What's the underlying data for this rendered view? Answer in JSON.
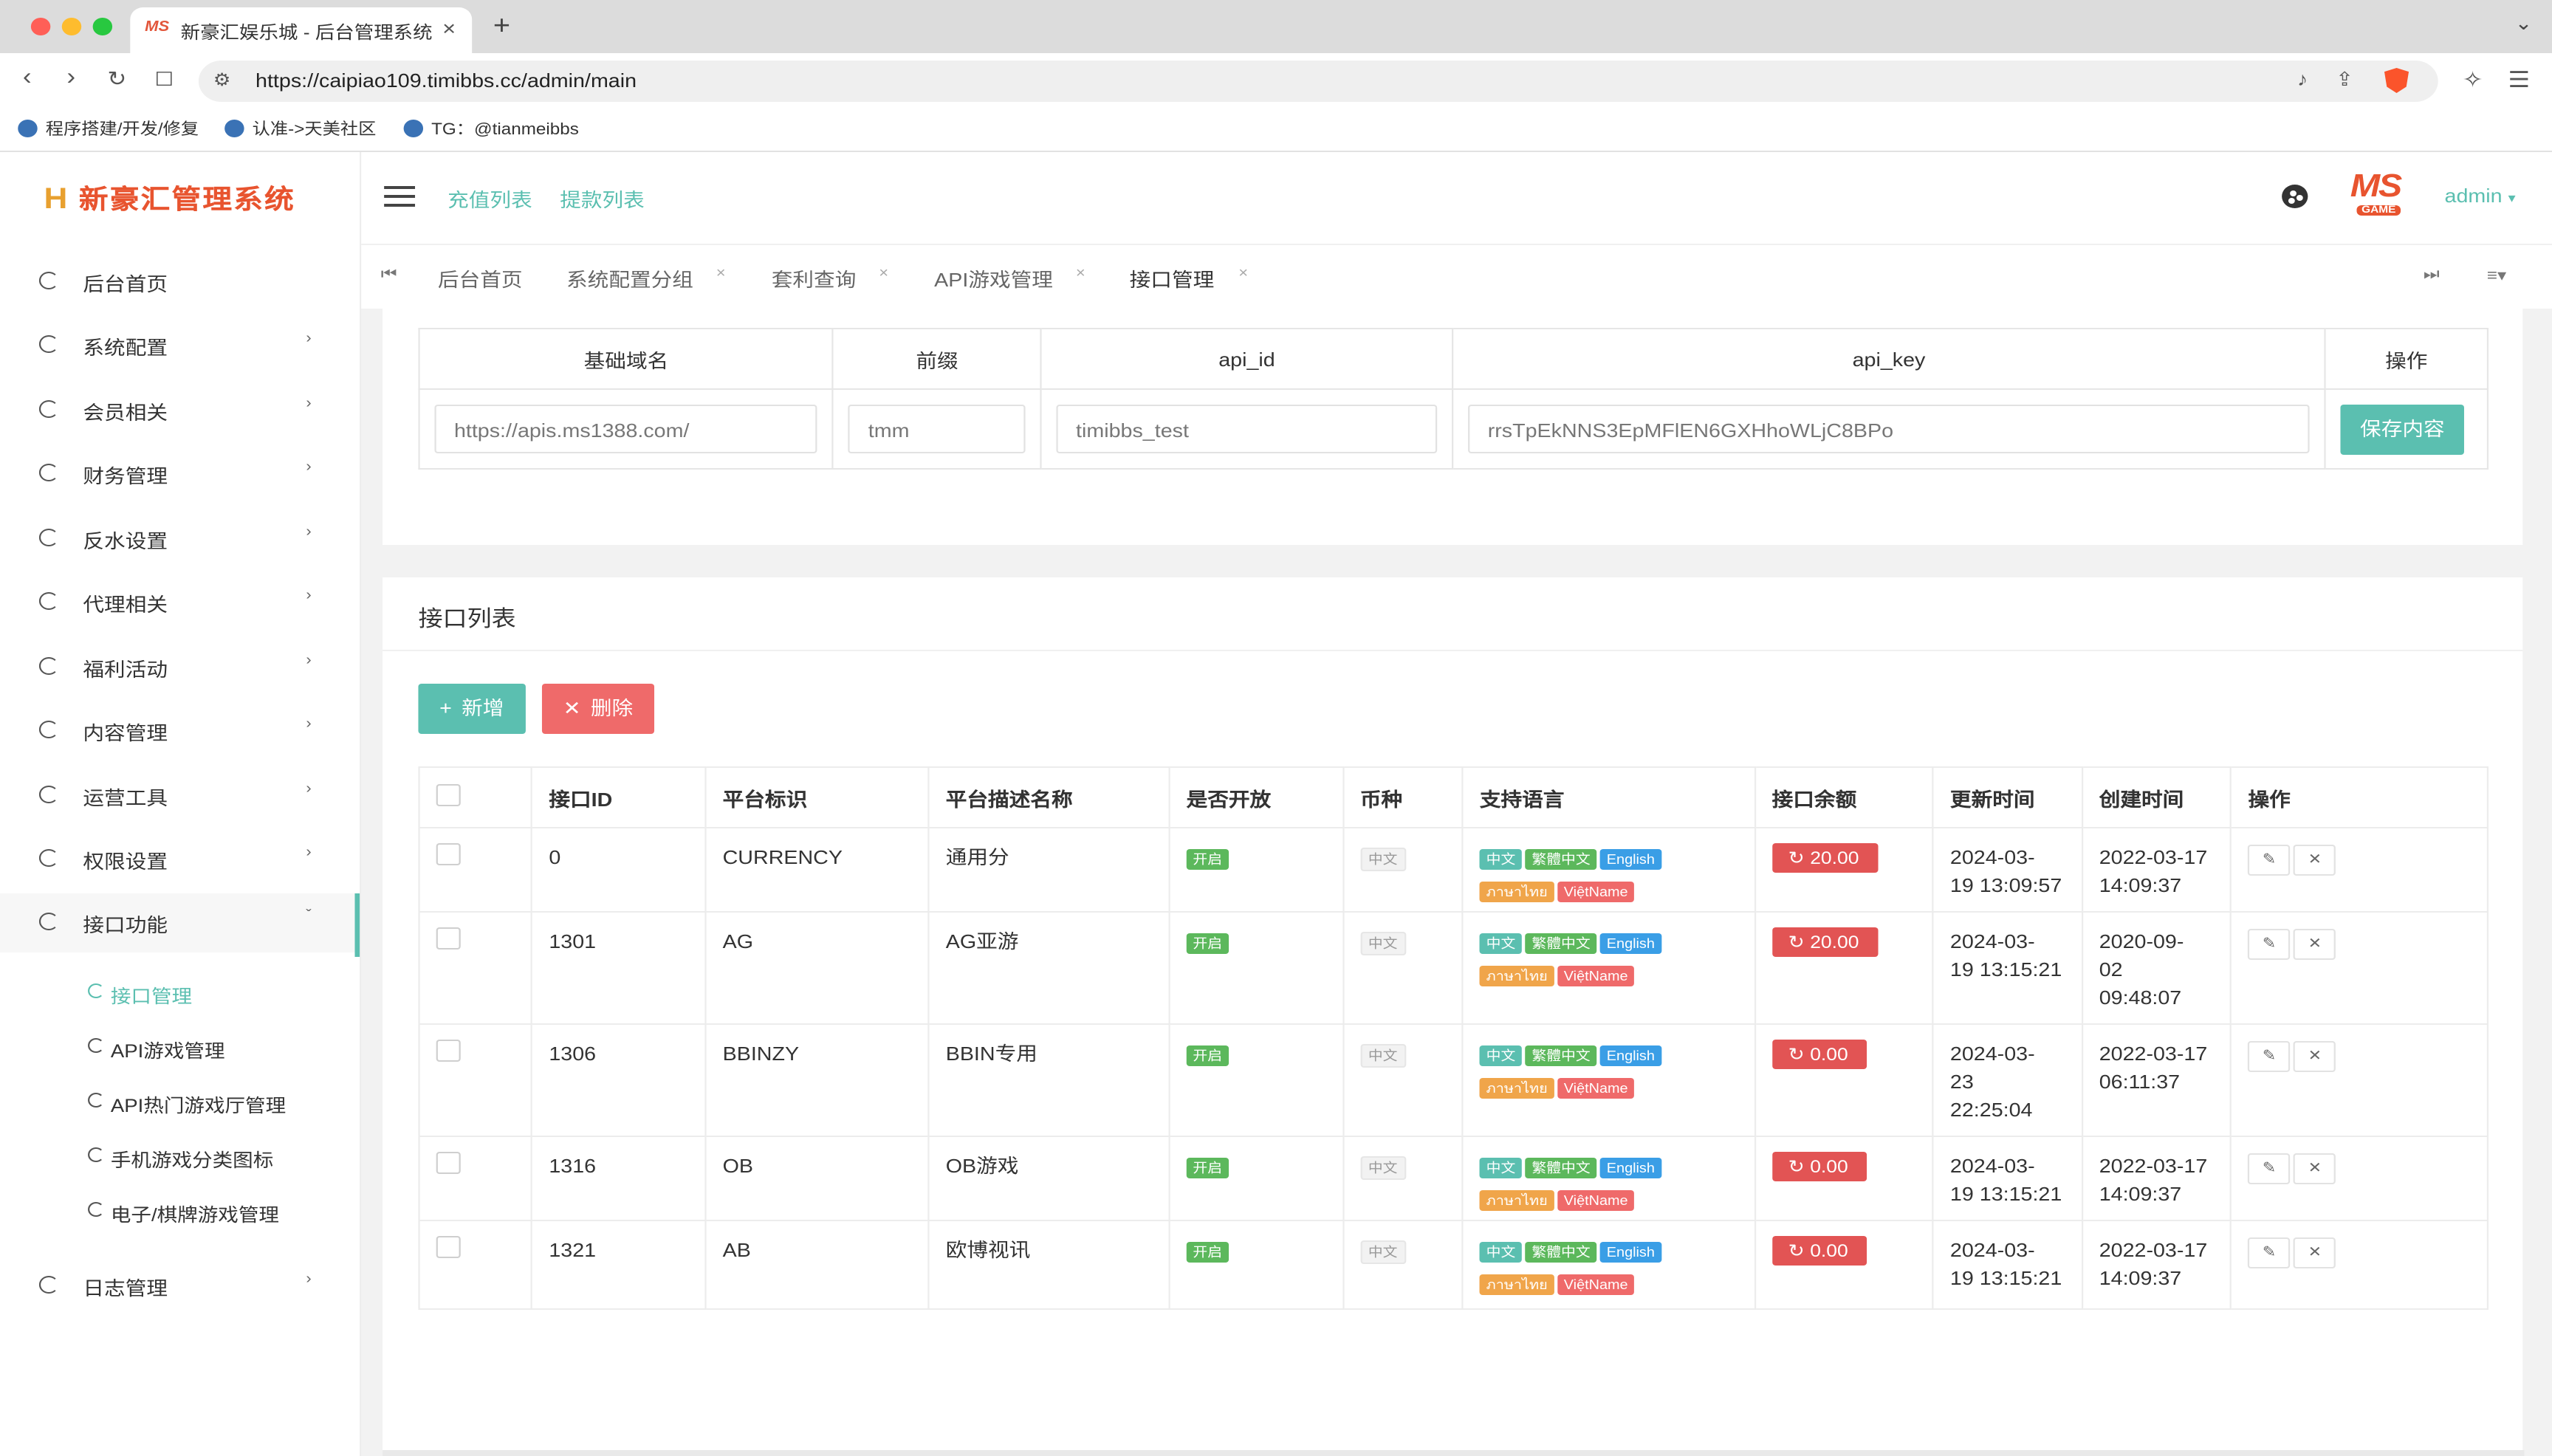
{
  "browser": {
    "tab_title": "新豪汇娱乐城 - 后台管理系统",
    "favicon_text": "MS",
    "new_tab_symbol": "+",
    "url": "https://caipiao109.timibbs.cc/admin/main",
    "bookmarks": [
      "程序搭建/开发/修复",
      "认准->天美社区",
      "TG：@tianmeibbs"
    ]
  },
  "app": {
    "logo_text": "新豪汇管理系统",
    "logo_mark": "H",
    "header_links": [
      "充值列表",
      "提款列表"
    ],
    "user": "admin",
    "ms_logo": "MS",
    "ms_logo_sub": "GAME"
  },
  "sidebar": {
    "items": [
      {
        "label": "后台首页",
        "caret": false
      },
      {
        "label": "系统配置",
        "caret": true
      },
      {
        "label": "会员相关",
        "caret": true
      },
      {
        "label": "财务管理",
        "caret": true
      },
      {
        "label": "反水设置",
        "caret": true
      },
      {
        "label": "代理相关",
        "caret": true
      },
      {
        "label": "福利活动",
        "caret": true
      },
      {
        "label": "内容管理",
        "caret": true
      },
      {
        "label": "运营工具",
        "caret": true
      },
      {
        "label": "权限设置",
        "caret": true
      },
      {
        "label": "接口功能",
        "caret": true,
        "expanded": true
      }
    ],
    "sub_items": [
      "接口管理",
      "API游戏管理",
      "API热门游戏厅管理",
      "手机游戏分类图标",
      "电子/棋牌游戏管理"
    ],
    "active_sub": "接口管理",
    "last_item": "日志管理"
  },
  "page_tabs": [
    {
      "label": "后台首页",
      "closable": false
    },
    {
      "label": "系统配置分组",
      "closable": true
    },
    {
      "label": "套利查询",
      "closable": true
    },
    {
      "label": "API游戏管理",
      "closable": true
    },
    {
      "label": "接口管理",
      "closable": true,
      "active": true
    }
  ],
  "config": {
    "headers": [
      "基础域名",
      "前缀",
      "api_id",
      "api_key",
      "操作"
    ],
    "base_domain": "https://apis.ms1388.com/",
    "prefix": "tmm",
    "api_id": "timibbs_test",
    "api_key": "rrsTpEkNNS3EpMFlEN6GXHhoWLjC8BPo",
    "save_label": "保存内容"
  },
  "list": {
    "title": "接口列表",
    "add_label": "新增",
    "delete_label": "删除",
    "headers": [
      "接口ID",
      "平台标识",
      "平台描述名称",
      "是否开放",
      "币种",
      "支持语言",
      "接口余额",
      "更新时间",
      "创建时间",
      "操作"
    ],
    "languages": [
      "中文",
      "繁體中文",
      "English",
      "ภาษาไทย",
      "ViệtName"
    ],
    "rows": [
      {
        "id": "0",
        "code": "CURRENCY",
        "name": "通用分",
        "open": "开启",
        "currency": "中文",
        "balance": "20.00",
        "updated": [
          "2024-03-",
          "19 13:09:57"
        ],
        "created": [
          "2022-03-17",
          "14:09:37"
        ]
      },
      {
        "id": "1301",
        "code": "AG",
        "name": "AG亚游",
        "open": "开启",
        "currency": "中文",
        "balance": "20.00",
        "updated": [
          "2024-03-",
          "19 13:15:21"
        ],
        "created": [
          "2020-09-",
          "02",
          "09:48:07"
        ]
      },
      {
        "id": "1306",
        "code": "BBINZY",
        "name": "BBIN专用",
        "open": "开启",
        "currency": "中文",
        "balance": "0.00",
        "updated": [
          "2024-03-",
          "23",
          "22:25:04"
        ],
        "created": [
          "2022-03-17",
          "06:11:37"
        ]
      },
      {
        "id": "1316",
        "code": "OB",
        "name": "OB游戏",
        "open": "开启",
        "currency": "中文",
        "balance": "0.00",
        "updated": [
          "2024-03-",
          "19 13:15:21"
        ],
        "created": [
          "2022-03-17",
          "14:09:37"
        ]
      },
      {
        "id": "1321",
        "code": "AB",
        "name": "欧博视讯",
        "open": "开启",
        "currency": "中文",
        "balance": "0.00",
        "updated": [
          "2024-03-",
          "19 13:15:21"
        ],
        "created": [
          "2022-03-17",
          "14:09:37"
        ]
      }
    ]
  },
  "colors": {
    "accent": "#5bbfb0",
    "danger": "#ef6a6a",
    "balance": "#e25454"
  }
}
